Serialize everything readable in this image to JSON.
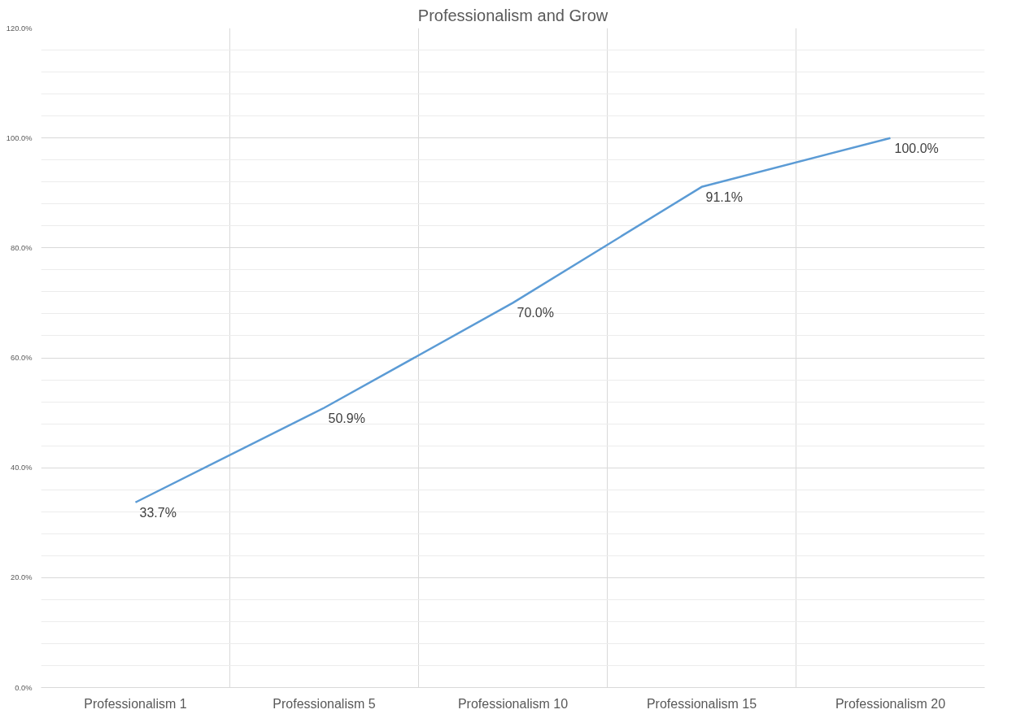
{
  "chart_data": {
    "type": "line",
    "title": "Professionalism and Grow",
    "categories": [
      "Professionalism 1",
      "Professionalism 5",
      "Professionalism 10",
      "Professionalism 15",
      "Professionalism 20"
    ],
    "series": [
      {
        "color": "#5b9bd5",
        "values": [
          33.7,
          50.9,
          70.0,
          91.1,
          100.0
        ],
        "value_labels": [
          "33.7%",
          "50.9%",
          "70.0%",
          "91.1%",
          "100.0%"
        ]
      }
    ],
    "ylim": [
      0,
      120
    ],
    "yticks": [
      {
        "value": 0,
        "label": "0.0%"
      },
      {
        "value": 20,
        "label": "20.0%"
      },
      {
        "value": 40,
        "label": "40.0%"
      },
      {
        "value": 60,
        "label": "60.0%"
      },
      {
        "value": 80,
        "label": "80.0%"
      },
      {
        "value": 100,
        "label": "100.0%"
      },
      {
        "value": 120,
        "label": "120.0%"
      }
    ],
    "grid": true,
    "marker": "none",
    "line_style": "solid"
  }
}
